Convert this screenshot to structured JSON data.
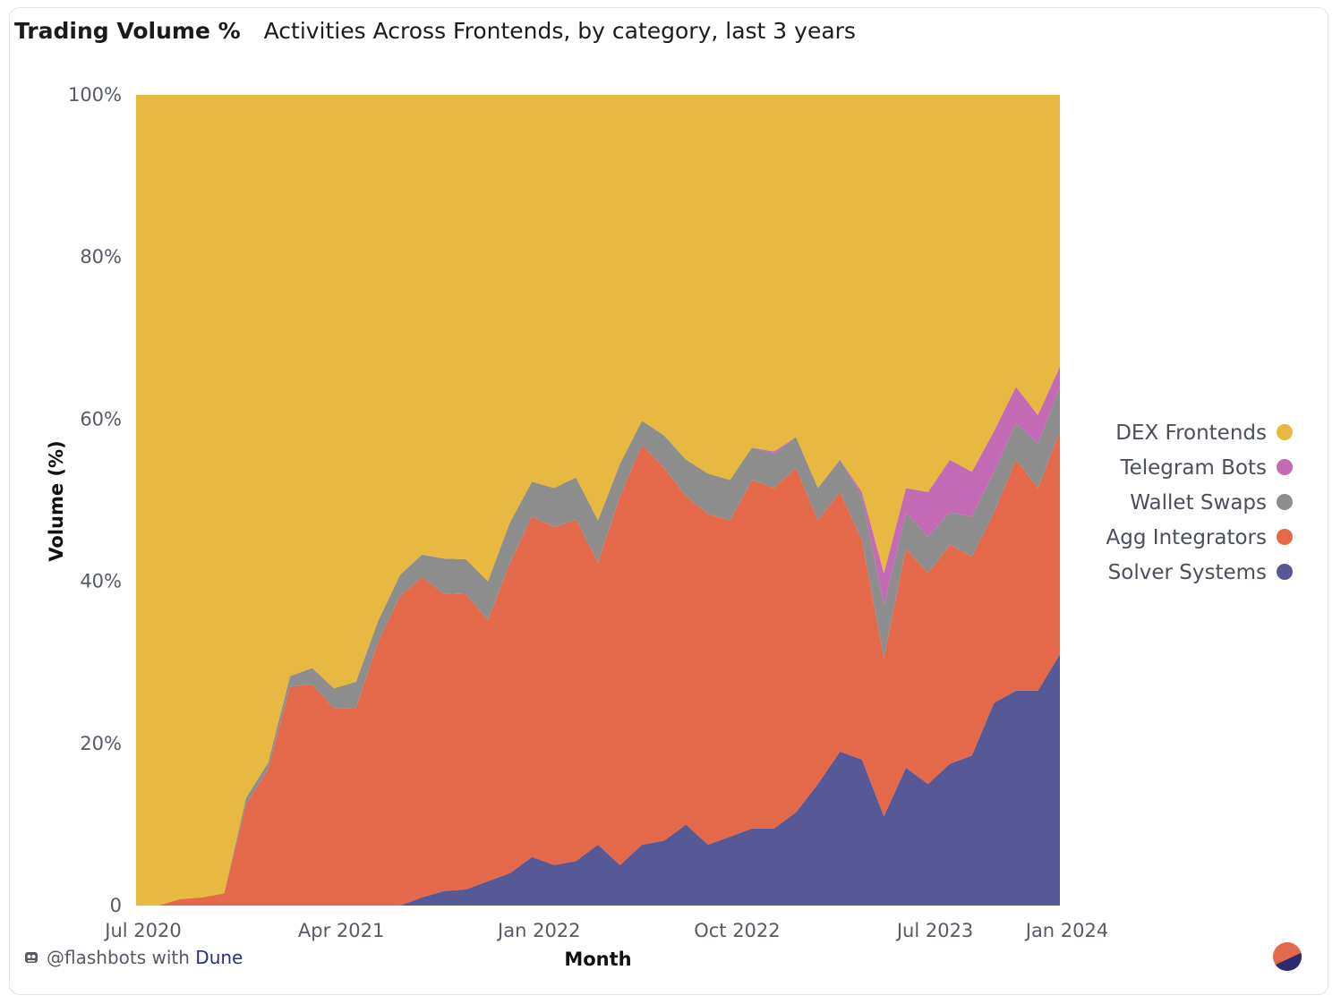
{
  "header": {
    "title": "Trading Volume %",
    "subtitle": "Activities Across Frontends, by category, last 3 years"
  },
  "footer": {
    "author": "@flashbots with ",
    "brand": "Dune"
  },
  "colors": {
    "dex": "#e8b941",
    "telegram": "#c36bb5",
    "wallet": "#8e8e8e",
    "agg": "#e4694b",
    "solver": "#575896"
  },
  "chart_data": {
    "type": "area",
    "stacked": "percent",
    "xlabel": "Month",
    "ylabel": "Volume (%)",
    "ylim": [
      0,
      100
    ],
    "y_ticks": [
      "0",
      "20%",
      "40%",
      "60%",
      "80%",
      "100%"
    ],
    "y_tick_values": [
      0,
      20,
      40,
      60,
      80,
      100
    ],
    "x_ticks": [
      "Jul 2020",
      "Apr 2021",
      "Jan 2022",
      "Oct 2022",
      "Jul 2023",
      "Jan 2024"
    ],
    "x_tick_index": [
      0,
      9,
      18,
      27,
      36,
      42
    ],
    "x": [
      "2020-07",
      "2020-08",
      "2020-09",
      "2020-10",
      "2020-11",
      "2020-12",
      "2021-01",
      "2021-02",
      "2021-03",
      "2021-04",
      "2021-05",
      "2021-06",
      "2021-07",
      "2021-08",
      "2021-09",
      "2021-10",
      "2021-11",
      "2021-12",
      "2022-01",
      "2022-02",
      "2022-03",
      "2022-04",
      "2022-05",
      "2022-06",
      "2022-07",
      "2022-08",
      "2022-09",
      "2022-10",
      "2022-11",
      "2022-12",
      "2023-01",
      "2023-02",
      "2023-03",
      "2023-04",
      "2023-05",
      "2023-06",
      "2023-07",
      "2023-08",
      "2023-09",
      "2023-10",
      "2023-11",
      "2023-12",
      "2024-01"
    ],
    "legend_position": "right",
    "series": [
      {
        "name": "Solver Systems",
        "color_key": "solver",
        "values": [
          0,
          0,
          0,
          0,
          0,
          0,
          0,
          0,
          0,
          0,
          0,
          0,
          0,
          1,
          1.8,
          2,
          3,
          4,
          6,
          5,
          5.5,
          7.5,
          5,
          7.5,
          8,
          10,
          7.5,
          8.5,
          9.5,
          9.5,
          11.5,
          15,
          19,
          18,
          11,
          17,
          15,
          17.5,
          18.5,
          25,
          26.5,
          26.5,
          31
        ]
      },
      {
        "name": "Agg Integrators",
        "color_key": "agg",
        "values": [
          0,
          0,
          0.8,
          1,
          1.5,
          12.5,
          16.8,
          27,
          27.3,
          24.3,
          24.4,
          32.5,
          38.2,
          39.5,
          36.7,
          36.4,
          32.2,
          38.3,
          42,
          41.7,
          42.1,
          34.8,
          45.5,
          49.3,
          46,
          40.5,
          40.8,
          39,
          43,
          42,
          42.5,
          32.5,
          32,
          27,
          19.5,
          27,
          26,
          27,
          24.5,
          23.5,
          28.5,
          25,
          27.5
        ]
      },
      {
        "name": "Wallet Swaps",
        "color_key": "wallet",
        "values": [
          0,
          0,
          0,
          0,
          0,
          0.8,
          0.8,
          1.3,
          2,
          2.5,
          3.2,
          2.6,
          2.6,
          2.8,
          4.3,
          4.3,
          4.8,
          5,
          4.3,
          4.8,
          5.2,
          5.2,
          4,
          3,
          4,
          4.5,
          5,
          5,
          4,
          4.2,
          3.8,
          4,
          4,
          5.5,
          6.5,
          4.5,
          4.5,
          4,
          5,
          5,
          4.5,
          5.5,
          5.5
        ]
      },
      {
        "name": "Telegram Bots",
        "color_key": "telegram",
        "values": [
          0,
          0,
          0,
          0,
          0,
          0,
          0,
          0,
          0,
          0,
          0,
          0,
          0,
          0,
          0,
          0,
          0,
          0,
          0,
          0,
          0,
          0,
          0,
          0,
          0,
          0,
          0,
          0,
          0,
          0.3,
          0,
          0,
          0,
          0.5,
          4,
          3,
          5.5,
          6.5,
          5.5,
          5,
          4.5,
          3.5,
          2.5
        ]
      },
      {
        "name": "DEX Frontends",
        "color_key": "dex",
        "values": [
          100,
          100,
          99.2,
          99,
          98.5,
          86.7,
          82.4,
          71.7,
          70.7,
          73.2,
          72.4,
          64.9,
          59.2,
          56.7,
          57.2,
          57.3,
          60,
          52.7,
          47.7,
          48.5,
          47.2,
          52.5,
          45.5,
          40.2,
          42,
          45,
          46.7,
          47.5,
          43.5,
          44,
          42.2,
          48.5,
          45,
          49,
          59,
          48.5,
          49,
          45,
          46.5,
          41.5,
          36,
          39.5,
          33.5
        ]
      }
    ],
    "legend": [
      "DEX Frontends",
      "Telegram Bots",
      "Wallet Swaps",
      "Agg Integrators",
      "Solver Systems"
    ]
  }
}
